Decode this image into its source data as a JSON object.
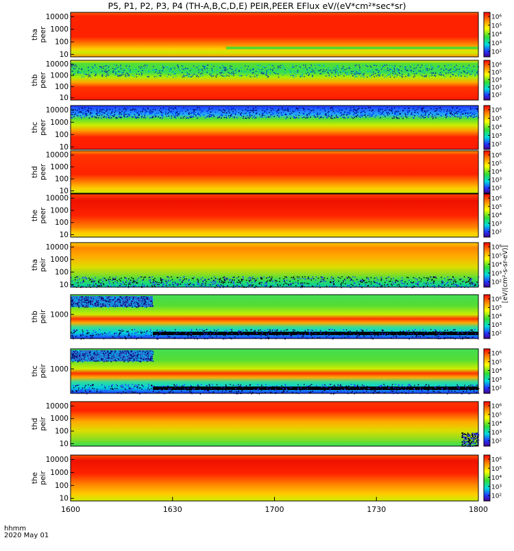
{
  "chart_data": {
    "type": "heatmap",
    "title": "P5, P1, P2, P3, P4 (TH-A,B,C,D,E) PEIR,PEER EFlux eV/(eV*cm²*sec*sr)",
    "x_tick_labels": [
      "1600",
      "1630",
      "1700",
      "1730",
      "1800"
    ],
    "x_footer": [
      "hhmm",
      "2020 May 01"
    ],
    "colorbar_label": "[eV/(cm²-s-sr-eV)]",
    "colorbar_ticks": [
      "10²",
      "10³",
      "10⁴",
      "10⁵",
      "10⁶"
    ],
    "colors": {
      "red": "#ff1a00",
      "orange": "#ff9900",
      "yellow": "#e6e600",
      "green": "#33d933",
      "cyan": "#00d9d9",
      "blue": "#2233ff",
      "black": "#000000"
    },
    "panels": [
      {
        "probe": "tha",
        "species": "peer",
        "ylabel": [
          "tha",
          "peer"
        ],
        "yticks": [
          "10",
          "100",
          "1000",
          "10000"
        ]
      },
      {
        "probe": "thb",
        "species": "peer",
        "ylabel": [
          "thb",
          "peer"
        ],
        "yticks": [
          "10",
          "100",
          "1000",
          "10000"
        ]
      },
      {
        "probe": "thc",
        "species": "peer",
        "ylabel": [
          "thc",
          "peer"
        ],
        "yticks": [
          "10",
          "100",
          "1000",
          "10000"
        ]
      },
      {
        "probe": "thd",
        "species": "peer",
        "ylabel": [
          "thd",
          "peer"
        ],
        "yticks": [
          "10",
          "100",
          "1000",
          "10000"
        ]
      },
      {
        "probe": "the",
        "species": "peer",
        "ylabel": [
          "the",
          "peer"
        ],
        "yticks": [
          "10",
          "100",
          "1000",
          "10000"
        ]
      },
      {
        "probe": "tha",
        "species": "peir",
        "ylabel": [
          "tha",
          "peir"
        ],
        "yticks": [
          "10",
          "100",
          "1000",
          "10000"
        ]
      },
      {
        "probe": "thb",
        "species": "peir",
        "ylabel": [
          "thb",
          "peir"
        ],
        "yticks": [
          "1000"
        ]
      },
      {
        "probe": "thc",
        "species": "peir",
        "ylabel": [
          "thc",
          "peir"
        ],
        "yticks": [
          "1000"
        ]
      },
      {
        "probe": "thd",
        "species": "peir",
        "ylabel": [
          "thd",
          "peir"
        ],
        "yticks": [
          "10",
          "100",
          "1000",
          "10000"
        ]
      },
      {
        "probe": "the",
        "species": "peir",
        "ylabel": [
          "the",
          "peir"
        ],
        "yticks": [
          "10",
          "100",
          "1000",
          "10000"
        ]
      }
    ]
  }
}
